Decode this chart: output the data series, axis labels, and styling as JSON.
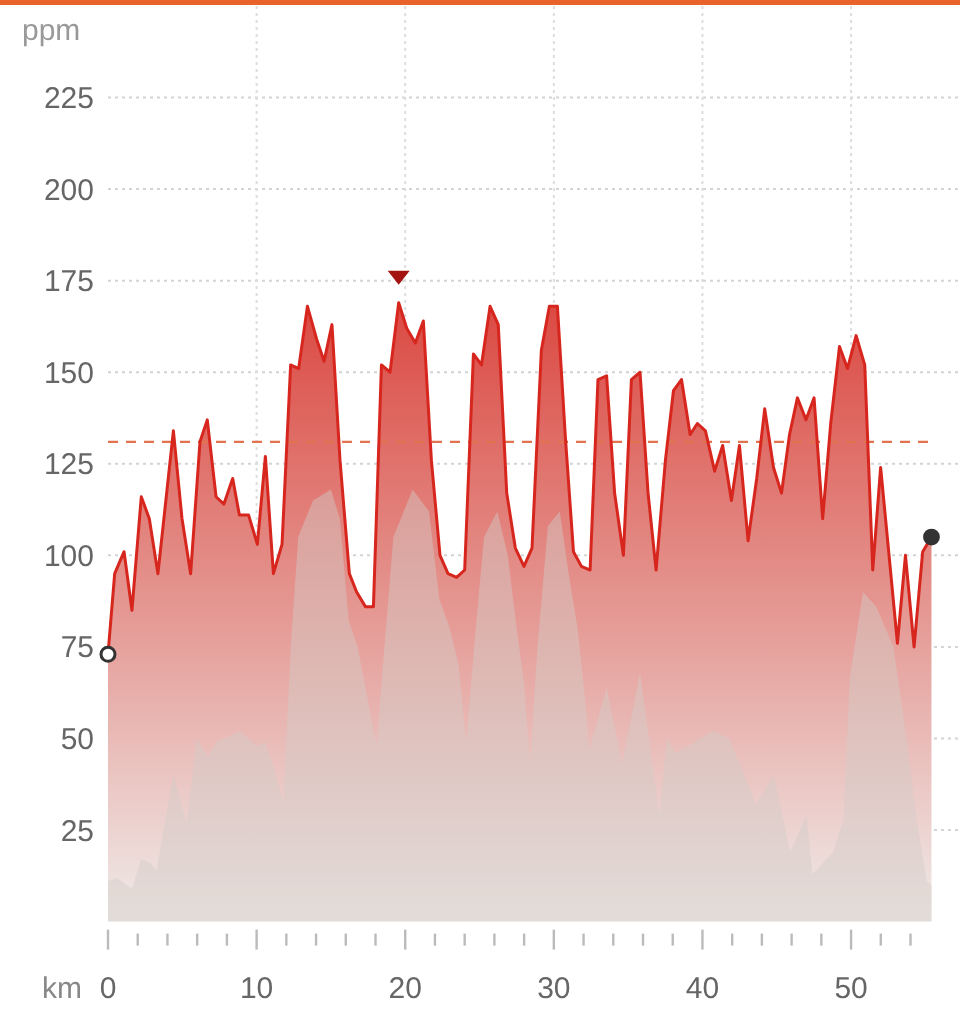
{
  "chart_data": {
    "type": "area",
    "xlabel": "km",
    "ylabel": "ppm",
    "xlim": [
      0,
      55.5
    ],
    "ylim": [
      0,
      250
    ],
    "xticks": [
      0,
      {
        "value": 2,
        "label": null
      },
      {
        "value": 4,
        "label": null
      },
      {
        "value": 6,
        "label": null
      },
      {
        "value": 8,
        "label": null
      },
      10,
      {
        "value": 12,
        "label": null
      },
      {
        "value": 14,
        "label": null
      },
      {
        "value": 16,
        "label": null
      },
      {
        "value": 18,
        "label": null
      },
      20,
      {
        "value": 22,
        "label": null
      },
      {
        "value": 24,
        "label": null
      },
      {
        "value": 26,
        "label": null
      },
      {
        "value": 28,
        "label": null
      },
      30,
      {
        "value": 32,
        "label": null
      },
      {
        "value": 34,
        "label": null
      },
      {
        "value": 36,
        "label": null
      },
      {
        "value": 38,
        "label": null
      },
      40,
      {
        "value": 42,
        "label": null
      },
      {
        "value": 44,
        "label": null
      },
      {
        "value": 46,
        "label": null
      },
      {
        "value": 48,
        "label": null
      },
      50,
      {
        "value": 52,
        "label": null
      },
      {
        "value": 54,
        "label": null
      }
    ],
    "yticks": [
      25,
      50,
      75,
      100,
      125,
      150,
      175,
      200,
      225
    ],
    "grid": true,
    "ref_lines": [
      {
        "axis": "y",
        "value": 131,
        "color": "#e2734f",
        "line_style": "dashed"
      }
    ],
    "series": [
      {
        "color": "#d7261e",
        "line_style": "solid",
        "x": [
          0,
          0.45,
          1.08,
          1.61,
          2.24,
          2.78,
          3.36,
          4.4,
          4.98,
          5.56,
          6.19,
          6.68,
          7.27,
          7.8,
          8.39,
          8.84,
          9.46,
          10.05,
          10.59,
          11.13,
          11.71,
          12.29,
          12.83,
          13.42,
          14.04,
          14.54,
          15.07,
          15.61,
          16.24,
          16.73,
          17.32,
          17.86,
          18.4,
          18.98,
          19.56,
          20.1,
          20.68,
          21.22,
          21.76,
          22.34,
          22.88,
          23.46,
          24.0,
          24.59,
          25.13,
          25.71,
          26.26,
          26.83,
          27.41,
          27.99,
          28.53,
          29.16,
          29.7,
          30.24,
          30.78,
          31.32,
          31.86,
          32.44,
          32.97,
          33.55,
          34.09,
          34.68,
          35.22,
          35.8,
          36.34,
          36.88,
          37.51,
          38.05,
          38.59,
          39.17,
          39.66,
          40.2,
          40.82,
          41.36,
          41.95,
          42.49,
          43.07,
          43.65,
          44.19,
          44.78,
          45.32,
          45.86,
          46.39,
          46.97,
          47.51,
          48.09,
          48.63,
          49.22,
          49.76,
          50.34,
          50.92,
          51.46,
          51.99,
          52.58,
          53.12,
          53.66,
          54.24,
          54.82,
          55.41
        ],
        "values": [
          73,
          95,
          101,
          85,
          116,
          110,
          95,
          134,
          110,
          95,
          131,
          137,
          116,
          114,
          121,
          111,
          111,
          103,
          127,
          95,
          103,
          152,
          151,
          168,
          159,
          153,
          163,
          126,
          95,
          90,
          86,
          86,
          152,
          150,
          169,
          162,
          158,
          164,
          126,
          100,
          95,
          94,
          96,
          155,
          152,
          168,
          163,
          117,
          102,
          97,
          102,
          156,
          168,
          168,
          132,
          101,
          97,
          96,
          148,
          149,
          117,
          100,
          148,
          150,
          117,
          96,
          126,
          145,
          148,
          133,
          136,
          134,
          123,
          130,
          115,
          130,
          104,
          121,
          140,
          124,
          117,
          133,
          143,
          137,
          143,
          110,
          136,
          157,
          151,
          160,
          152,
          96,
          124,
          99,
          76,
          100,
          75,
          101,
          105
        ]
      },
      {
        "color": "#d3cbc8",
        "x": [
          0,
          0.58,
          1.61,
          2.24,
          2.83,
          3.27,
          4.4,
          5.29,
          5.96,
          6.73,
          7.31,
          8.88,
          10.0,
          10.6,
          11.0,
          11.8,
          12.3,
          12.8,
          13.8,
          15.0,
          15.6,
          16.2,
          16.8,
          17.5,
          18.08,
          18.6,
          19.2,
          20.5,
          21.6,
          22.3,
          23.0,
          23.6,
          24.1,
          24.7,
          25.3,
          26.2,
          26.9,
          27.5,
          28.0,
          28.4,
          28.9,
          29.6,
          30.4,
          31.0,
          31.6,
          32.0,
          32.4,
          33.55,
          34.6,
          35.8,
          37.1,
          37.6,
          38.2,
          40.7,
          41.8,
          43.6,
          44.8,
          45.9,
          47.0,
          47.4,
          48.8,
          49.5,
          49.9,
          50.8,
          51.7,
          52.85,
          53.7,
          54.4,
          55.1,
          55.41
        ],
        "values": [
          11,
          12,
          9,
          17,
          16,
          14,
          40,
          27,
          50,
          45,
          49,
          52,
          48,
          49,
          44,
          33,
          75,
          105,
          115,
          118,
          110,
          82,
          75,
          60,
          48,
          75,
          105,
          118,
          112,
          88,
          80,
          70,
          49,
          78,
          105,
          112,
          100,
          80,
          65,
          43,
          75,
          108,
          112,
          95,
          80,
          65,
          47,
          64,
          43,
          68,
          29,
          50,
          46,
          52,
          50,
          32,
          40,
          19,
          29,
          13,
          19,
          28,
          66,
          90,
          86,
          75,
          51,
          28,
          11,
          10
        ]
      }
    ]
  }
}
